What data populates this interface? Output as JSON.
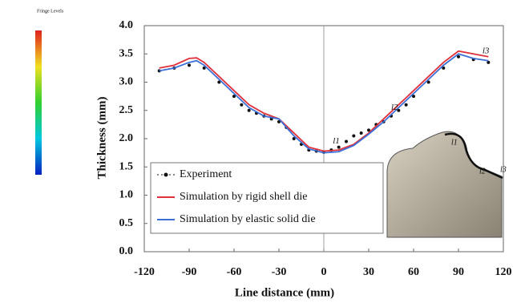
{
  "chart_data": {
    "type": "line",
    "x_label": "Line distance (mm)",
    "y_label": "Thickness (mm)",
    "colorbar_title": "Fringe Levels",
    "annotations": [
      "l1",
      "l2",
      "l3"
    ],
    "inset_labels": [
      "l1",
      "l2",
      "l3"
    ],
    "xlim": [
      -120,
      120
    ],
    "xticks": [
      -120,
      -90,
      -60,
      -30,
      0,
      30,
      60,
      90,
      120
    ],
    "ylim": [
      0,
      4
    ],
    "yticks": [
      {
        "value": 0,
        "label": "0.0"
      },
      0.5,
      {
        "value": 1,
        "label": "1.0"
      },
      1.5,
      {
        "value": 2,
        "label": "2.0"
      },
      2.5,
      {
        "value": 3,
        "label": "3.0"
      },
      3.5,
      {
        "value": 4,
        "label": "4.0"
      }
    ],
    "series": [
      {
        "name": "Experiment",
        "color": "#111111",
        "style": "points",
        "x": [
          -110,
          -100,
          -90,
          -80,
          -70,
          -60,
          -55,
          -50,
          -45,
          -40,
          -35,
          -30,
          -25,
          -20,
          -15,
          -10,
          -5,
          0,
          5,
          10,
          15,
          20,
          25,
          30,
          35,
          40,
          45,
          50,
          55,
          60,
          70,
          80,
          90,
          100,
          110
        ],
        "values": [
          3.2,
          3.25,
          3.3,
          3.25,
          3.0,
          2.75,
          2.6,
          2.5,
          2.45,
          2.4,
          2.35,
          2.3,
          2.2,
          2.0,
          1.9,
          1.8,
          1.78,
          1.76,
          1.8,
          1.85,
          1.95,
          2.05,
          2.1,
          2.15,
          2.25,
          2.3,
          2.4,
          2.5,
          2.6,
          2.75,
          3.0,
          3.25,
          3.45,
          3.4,
          3.35
        ]
      },
      {
        "name": "Simulation by rigid shell die",
        "color": "#e0303a",
        "style": "line",
        "x": [
          -110,
          -100,
          -90,
          -85,
          -80,
          -70,
          -60,
          -50,
          -40,
          -30,
          -20,
          -10,
          0,
          10,
          20,
          30,
          40,
          50,
          60,
          70,
          80,
          90,
          100,
          110
        ],
        "values": [
          3.25,
          3.3,
          3.42,
          3.43,
          3.35,
          3.1,
          2.85,
          2.6,
          2.45,
          2.35,
          2.1,
          1.85,
          1.78,
          1.8,
          1.9,
          2.1,
          2.35,
          2.6,
          2.85,
          3.1,
          3.35,
          3.55,
          3.5,
          3.45
        ]
      },
      {
        "name": "Simulation by elastic solid die",
        "color": "#3a6fd8",
        "style": "line",
        "x": [
          -110,
          -100,
          -90,
          -85,
          -80,
          -70,
          -60,
          -50,
          -40,
          -30,
          -20,
          -10,
          0,
          10,
          20,
          30,
          40,
          50,
          60,
          70,
          80,
          90,
          100,
          110
        ],
        "values": [
          3.2,
          3.25,
          3.35,
          3.38,
          3.3,
          3.05,
          2.8,
          2.55,
          2.4,
          2.35,
          2.05,
          1.82,
          1.75,
          1.77,
          1.88,
          2.08,
          2.3,
          2.55,
          2.8,
          3.05,
          3.3,
          3.5,
          3.42,
          3.38
        ]
      }
    ]
  }
}
